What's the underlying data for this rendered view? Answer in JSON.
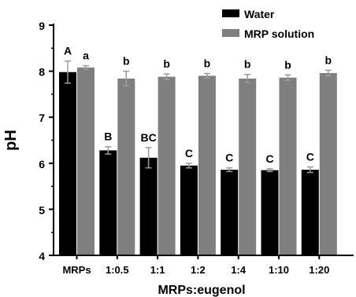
{
  "colors": {
    "water": "#000000",
    "mrp": "#7f7f7f",
    "errorbar": "#9a9a9a",
    "axis": "#000000"
  },
  "chart_data": {
    "type": "bar",
    "title": "",
    "xlabel": "MRPs:eugenol",
    "ylabel": "pH",
    "ylim": [
      4,
      9
    ],
    "yticks": [
      "4",
      "5",
      "6",
      "7",
      "8",
      "9"
    ],
    "legend_position": "top-right",
    "categories": [
      "MRPs",
      "1:0.5",
      "1:1",
      "1:2",
      "1:4",
      "1:10",
      "1:20"
    ],
    "series": [
      {
        "name": "Water",
        "values": [
          7.98,
          6.28,
          6.12,
          5.95,
          5.86,
          5.85,
          5.86
        ],
        "errors": [
          0.24,
          0.08,
          0.22,
          0.05,
          0.04,
          0.03,
          0.06
        ],
        "sig_labels": [
          "A",
          "B",
          "BC",
          "C",
          "C",
          "C",
          "C"
        ]
      },
      {
        "name": "MRP solution",
        "values": [
          8.08,
          7.84,
          7.88,
          7.9,
          7.84,
          7.86,
          7.96
        ],
        "errors": [
          0.04,
          0.16,
          0.06,
          0.05,
          0.09,
          0.06,
          0.06
        ],
        "sig_labels": [
          "a",
          "b",
          "b",
          "b",
          "b",
          "b",
          "b"
        ]
      }
    ]
  }
}
